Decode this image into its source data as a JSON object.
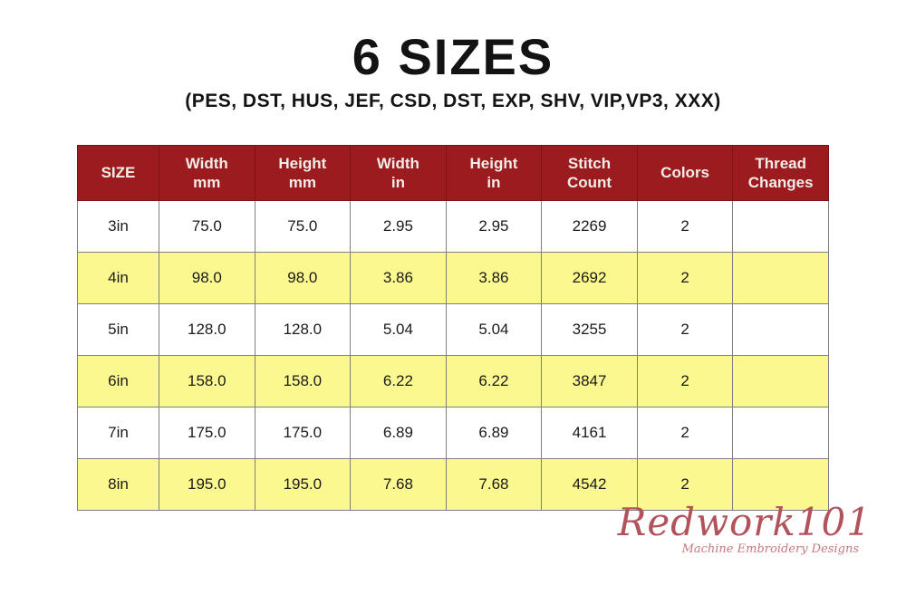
{
  "header": {
    "title": "6 SIZES",
    "subtitle": "(PES, DST, HUS, JEF, CSD, DST, EXP, SHV, VIP,VP3, XXX)"
  },
  "table": {
    "columns": [
      {
        "id": "size",
        "lines": [
          "SIZE"
        ]
      },
      {
        "id": "width-mm",
        "lines": [
          "Width",
          "mm"
        ]
      },
      {
        "id": "height-mm",
        "lines": [
          "Height",
          "mm"
        ]
      },
      {
        "id": "width-in",
        "lines": [
          "Width",
          "in"
        ]
      },
      {
        "id": "height-in",
        "lines": [
          "Height",
          "in"
        ]
      },
      {
        "id": "stitch-count",
        "lines": [
          "Stitch",
          "Count"
        ]
      },
      {
        "id": "colors",
        "lines": [
          "Colors"
        ]
      },
      {
        "id": "thread-changes",
        "lines": [
          "Thread",
          "Changes"
        ]
      }
    ],
    "rows": [
      [
        "3in",
        "75.0",
        "75.0",
        "2.95",
        "2.95",
        "2269",
        "2",
        ""
      ],
      [
        "4in",
        "98.0",
        "98.0",
        "3.86",
        "3.86",
        "2692",
        "2",
        ""
      ],
      [
        "5in",
        "128.0",
        "128.0",
        "5.04",
        "5.04",
        "3255",
        "2",
        ""
      ],
      [
        "6in",
        "158.0",
        "158.0",
        "6.22",
        "6.22",
        "3847",
        "2",
        ""
      ],
      [
        "7in",
        "175.0",
        "175.0",
        "6.89",
        "6.89",
        "4161",
        "2",
        ""
      ],
      [
        "8in",
        "195.0",
        "195.0",
        "7.68",
        "7.68",
        "4542",
        "2",
        ""
      ]
    ]
  },
  "logo": {
    "name": "Redwork101",
    "tagline": "Machine Embroidery Designs"
  },
  "colors": {
    "header_bg": "#9C1B1E",
    "header_border": "#7E1215",
    "header_text": "#F2EDE8",
    "row_bg": "#FFFFFF",
    "row_alt_bg": "#FBF88F",
    "grid_line": "#808080",
    "logo_red": "#B2525A",
    "logo_pink": "#C87880",
    "page_bg": "#FFFFFF"
  },
  "chart_data": {
    "type": "table",
    "title": "6 SIZES",
    "subtitle": "(PES, DST, HUS, JEF, CSD, DST, EXP, SHV, VIP,VP3, XXX)",
    "columns": [
      "SIZE",
      "Width mm",
      "Height mm",
      "Width in",
      "Height in",
      "Stitch Count",
      "Colors",
      "Thread Changes"
    ],
    "rows": [
      [
        "3in",
        "75.0",
        "75.0",
        "2.95",
        "2.95",
        "2269",
        "2",
        ""
      ],
      [
        "4in",
        "98.0",
        "98.0",
        "3.86",
        "3.86",
        "2692",
        "2",
        ""
      ],
      [
        "5in",
        "128.0",
        "128.0",
        "5.04",
        "5.04",
        "3255",
        "2",
        ""
      ],
      [
        "6in",
        "158.0",
        "158.0",
        "6.22",
        "6.22",
        "3847",
        "2",
        ""
      ],
      [
        "7in",
        "175.0",
        "175.0",
        "6.89",
        "6.89",
        "4161",
        "2",
        ""
      ],
      [
        "8in",
        "195.0",
        "195.0",
        "7.68",
        "7.68",
        "4542",
        "2",
        ""
      ]
    ],
    "layout": {
      "row_striping": "alternate white / light-yellow starting with white",
      "header_style": "dark red background, white bold text",
      "grid": true
    }
  }
}
